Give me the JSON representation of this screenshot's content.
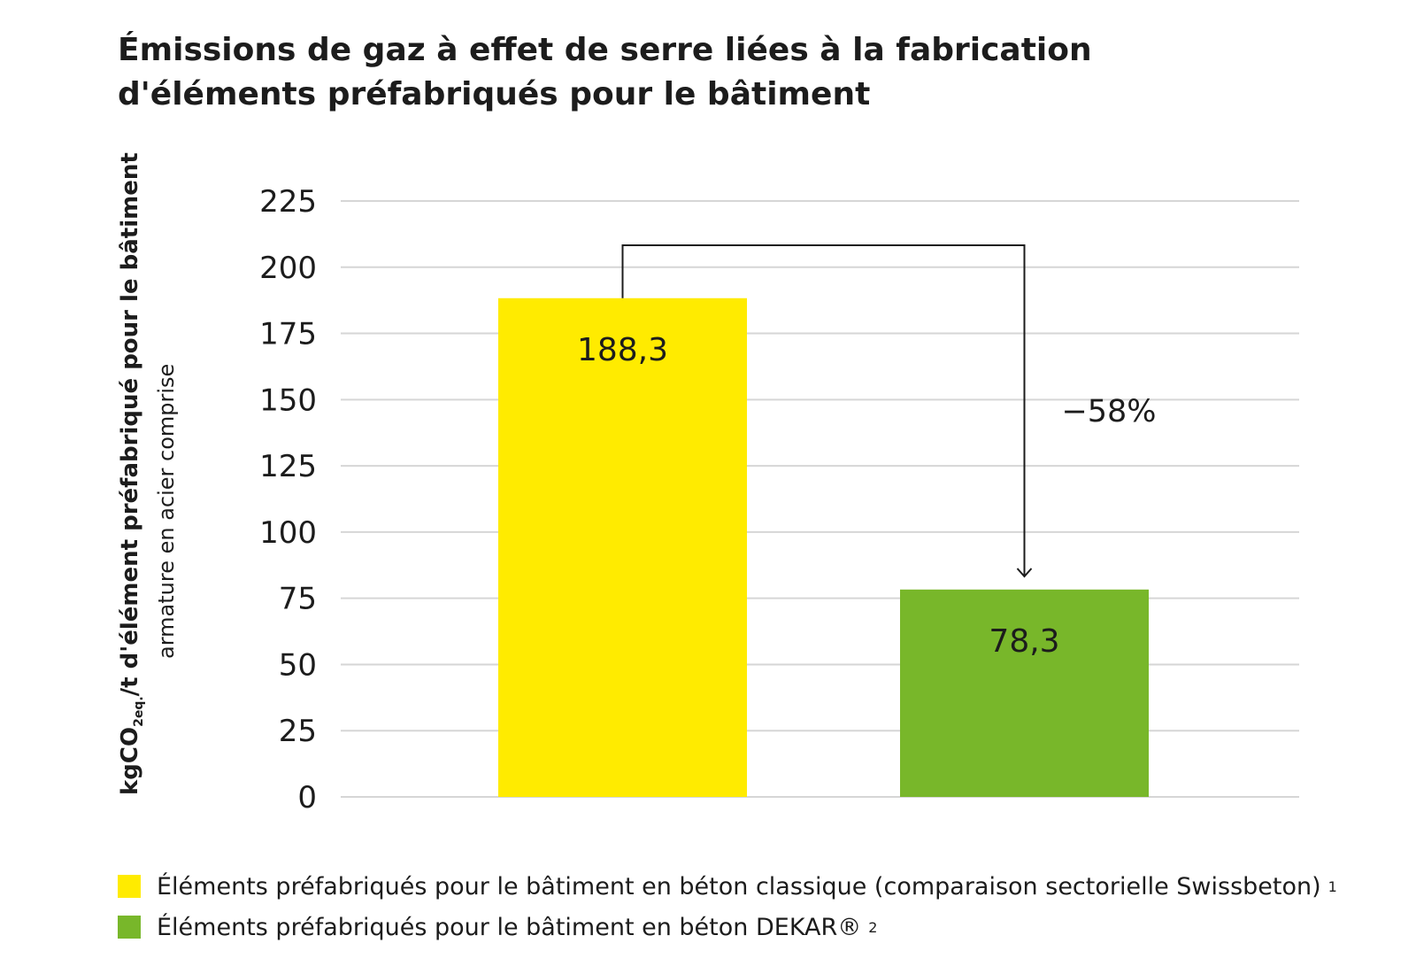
{
  "chart_data": {
    "type": "bar",
    "title": "Émissions de gaz à effet de serre liées à la fabrication d'éléments préfabriqués pour le bâtiment",
    "ylabel": {
      "main": "kgCO",
      "subscript": "2eq.",
      "rest": "/t d'élément préfabriqué pour le bâtiment",
      "secondary": "armature en acier comprise"
    },
    "xlabel": "",
    "ylim": [
      0,
      225
    ],
    "yticks": [
      0,
      25,
      50,
      75,
      100,
      125,
      150,
      175,
      200,
      225
    ],
    "grid": true,
    "categories": [
      "Éléments préfabriqués pour le bâtiment en béton classique (comparaison sectorielle Swissbeton)",
      "Éléments préfabriqués pour le bâtiment en béton DEKAR®"
    ],
    "values": [
      188.3,
      78.3
    ],
    "value_labels": [
      "188,3",
      "78,3"
    ],
    "colors": [
      "#FFEB00",
      "#78B72A"
    ],
    "annotation": "−58%",
    "legend": {
      "placement": "bottom-left",
      "items": [
        {
          "label": "Éléments préfabriqués pour le bâtiment en béton classique (comparaison sectorielle Swissbeton)",
          "sup": "1",
          "color": "#FFEB00"
        },
        {
          "label": "Éléments préfabriqués pour le bâtiment en béton DEKAR®",
          "sup": "2",
          "color": "#78B72A"
        }
      ]
    }
  }
}
